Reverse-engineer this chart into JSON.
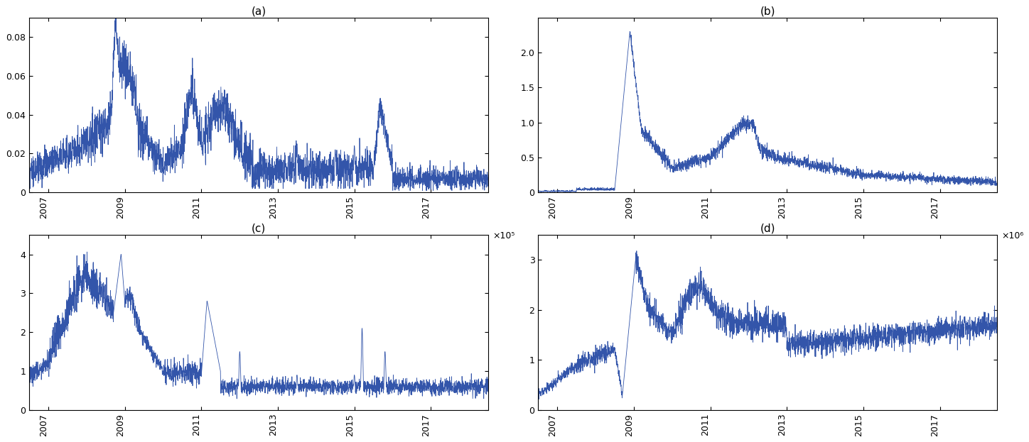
{
  "title_a": "(a)",
  "title_b": "(b)",
  "title_c": "(c)",
  "title_d": "(d)",
  "line_color": "#3355aa",
  "line_width": 0.6,
  "x_ticks": [
    2007,
    2009,
    2011,
    2013,
    2015,
    2017
  ],
  "x_lim": [
    2006.5,
    2018.5
  ],
  "ylim_a": [
    0,
    0.09
  ],
  "ylim_b": [
    0,
    2.5
  ],
  "ylim_c": [
    0,
    4.5
  ],
  "ylim_d": [
    0,
    3.5
  ],
  "yticks_a": [
    0,
    0.02,
    0.04,
    0.06,
    0.08
  ],
  "yticks_b": [
    0,
    0.5,
    1.0,
    1.5,
    2.0
  ],
  "yticks_c": [
    0,
    1,
    2,
    3,
    4
  ],
  "yticks_d": [
    0,
    1,
    2,
    3
  ],
  "sci_c": "×10⁵",
  "sci_d": "×10⁶",
  "n_points": 3000,
  "t_start": 2006.5,
  "t_end": 2018.5,
  "background_color": "#ffffff",
  "tick_rotation": 90
}
